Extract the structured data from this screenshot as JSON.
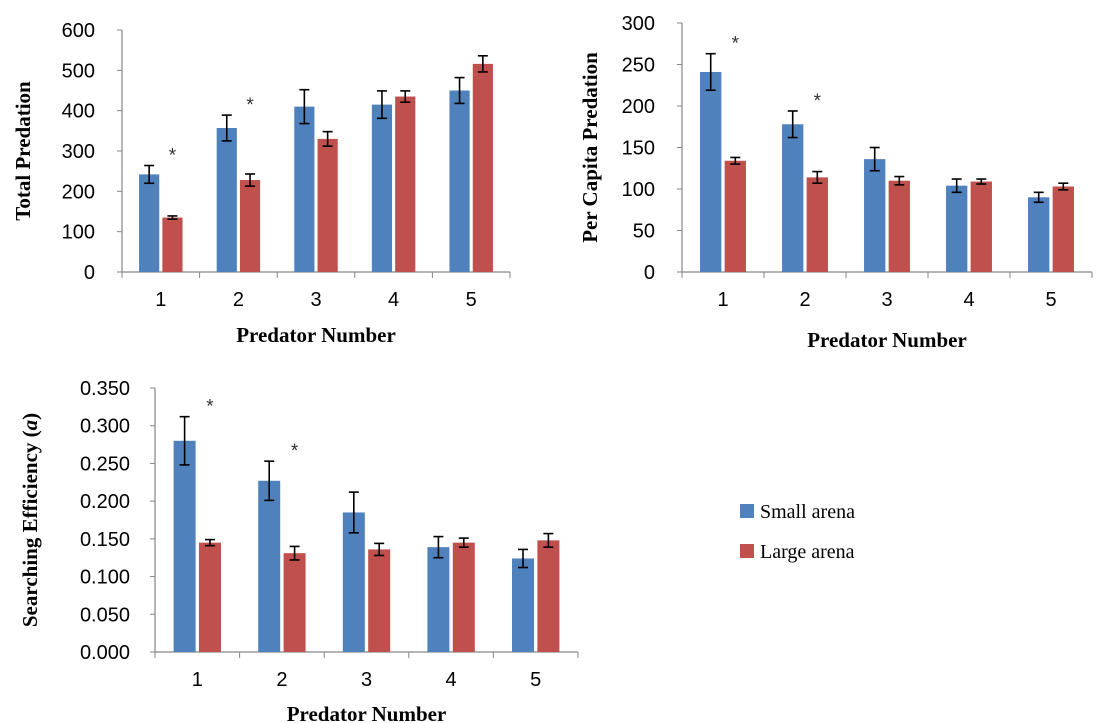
{
  "colors": {
    "small": "#4F81BD",
    "large": "#C0504D",
    "axis": "#868686",
    "errorbar": "#000000"
  },
  "legend": {
    "small_label": "Small arena",
    "large_label": "Large arena"
  },
  "chart_data": [
    {
      "type": "bar",
      "categories": [
        "1",
        "2",
        "3",
        "4",
        "5"
      ],
      "ylabel": "Total Predation",
      "xlabel": "Predator Number",
      "ylim": [
        0,
        600
      ],
      "yticks": [
        "0",
        "100",
        "200",
        "300",
        "400",
        "500",
        "600"
      ],
      "series": [
        {
          "name": "Small arena",
          "values": [
            242,
            357,
            410,
            415,
            450
          ],
          "errors": [
            22,
            32,
            42,
            34,
            32
          ]
        },
        {
          "name": "Large arena",
          "values": [
            135,
            228,
            330,
            435,
            516
          ],
          "errors": [
            4,
            15,
            18,
            14,
            20
          ]
        }
      ],
      "significant": [
        true,
        true,
        false,
        false,
        false
      ]
    },
    {
      "type": "bar",
      "categories": [
        "1",
        "2",
        "3",
        "4",
        "5"
      ],
      "ylabel": "Per Capita Predation",
      "xlabel": "Predator Number",
      "ylim": [
        0,
        300
      ],
      "yticks": [
        "0",
        "50",
        "100",
        "150",
        "200",
        "250",
        "300"
      ],
      "series": [
        {
          "name": "Small arena",
          "values": [
            241,
            178,
            136,
            104,
            90
          ],
          "errors": [
            22,
            16,
            14,
            8,
            6
          ]
        },
        {
          "name": "Large arena",
          "values": [
            134,
            114,
            110,
            109,
            103
          ],
          "errors": [
            4,
            7,
            5,
            3,
            4
          ]
        }
      ],
      "significant": [
        true,
        true,
        false,
        false,
        false
      ]
    },
    {
      "type": "bar",
      "categories": [
        "1",
        "2",
        "3",
        "4",
        "5"
      ],
      "ylabel": "Searching Efficiency (a)",
      "xlabel": "Predator Number",
      "ylim": [
        0,
        0.35
      ],
      "yticks": [
        "0.000",
        "0.050",
        "0.100",
        "0.150",
        "0.200",
        "0.250",
        "0.300",
        "0.350"
      ],
      "series": [
        {
          "name": "Small arena",
          "values": [
            0.28,
            0.227,
            0.185,
            0.139,
            0.124
          ],
          "errors": [
            0.032,
            0.026,
            0.027,
            0.014,
            0.012
          ]
        },
        {
          "name": "Large arena",
          "values": [
            0.145,
            0.131,
            0.136,
            0.145,
            0.148
          ],
          "errors": [
            0.004,
            0.009,
            0.008,
            0.006,
            0.009
          ]
        }
      ],
      "significant": [
        true,
        true,
        false,
        false,
        false
      ]
    }
  ]
}
